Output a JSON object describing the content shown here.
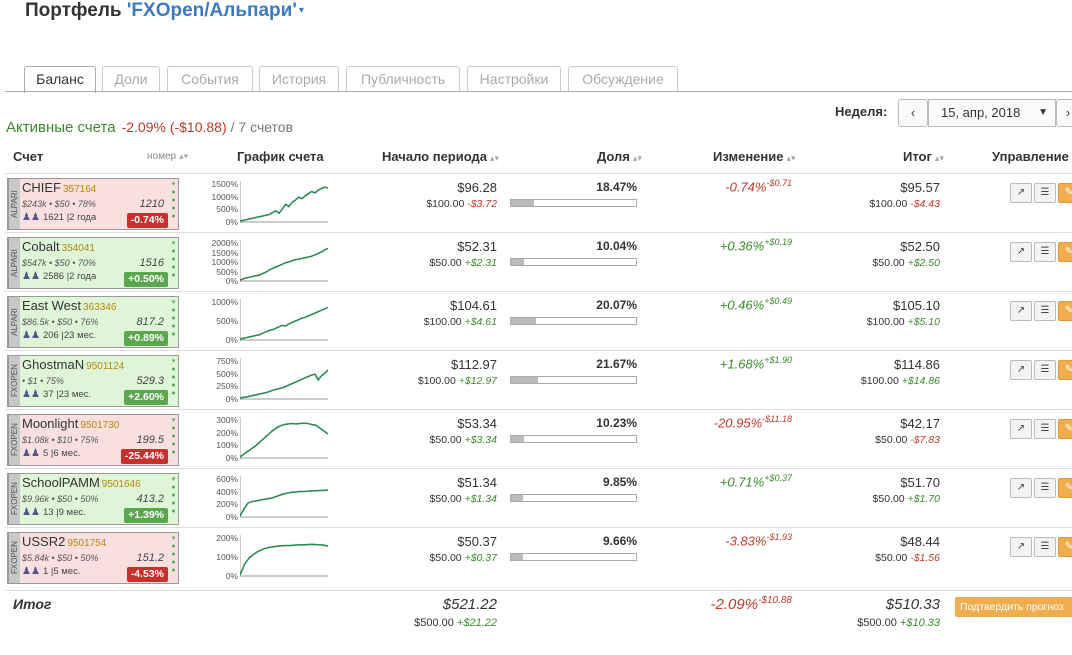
{
  "header": {
    "prefix": "Портфель ",
    "name": "'FXOpen/Альпари'",
    "caret": "▾"
  },
  "tabs": [
    "Баланс",
    "Доли",
    "События",
    "История",
    "Публичность",
    "Настройки",
    "Обсуждение"
  ],
  "week": {
    "label": "Неделя:",
    "value": "15, апр, 2018",
    "prev": "‹",
    "next": "›"
  },
  "active": {
    "title": "Активные счета",
    "change": "-2.09% (-$10.88)",
    "count": "/ 7 счетов"
  },
  "columns": {
    "account": "Счет",
    "number": "номер",
    "chart": "График счета",
    "start": "Начало периода",
    "share": "Доля",
    "change": "Изменение",
    "end": "Итог",
    "manage": "Управление"
  },
  "accounts": [
    {
      "name": "CHIEF",
      "number": "357164",
      "broker": "ALPARI",
      "card_color": "pink",
      "meta": "$243k • $50 • 78%",
      "meta2": "1621 |2 года",
      "rating": "1210",
      "badge": "-0.74%",
      "badge_type": "neg",
      "y_ticks": [
        "1500%",
        "1000%",
        "500%",
        "0%"
      ],
      "start": "$96.28",
      "start_sub": "$100.00",
      "start_delta": "-$3.72",
      "start_delta_type": "neg",
      "share": "18.47%",
      "share_value": 18.47,
      "change": "-0.74%",
      "change_abs": "-$0.71",
      "change_type": "neg",
      "end": "$95.57",
      "end_sub": "$100.00",
      "end_delta": "-$4.43",
      "end_delta_type": "neg",
      "spark": [
        0,
        2,
        4,
        6,
        8,
        10,
        12,
        14,
        16,
        18,
        24,
        28,
        22,
        34,
        46,
        40,
        52,
        58,
        66,
        62,
        70,
        76,
        82,
        78,
        86,
        90,
        94,
        92
      ]
    },
    {
      "name": "Cobalt",
      "number": "354041",
      "broker": "ALPARI",
      "card_color": "green",
      "meta": "$547k • $50 • 70%",
      "meta2": "2586 |2 года",
      "rating": "1516",
      "badge": "+0.50%",
      "badge_type": "pos",
      "y_ticks": [
        "2000%",
        "1500%",
        "1000%",
        "500%",
        "0%"
      ],
      "start": "$52.31",
      "start_sub": "$50.00",
      "start_delta": "+$2.31",
      "start_delta_type": "pos",
      "share": "10.04%",
      "share_value": 10.04,
      "change": "+0.36%",
      "change_abs": "+$0.19",
      "change_type": "pos",
      "end": "$52.50",
      "end_sub": "$50.00",
      "end_delta": "+$2.50",
      "end_delta_type": "pos",
      "spark": [
        0,
        3,
        6,
        8,
        10,
        12,
        14,
        18,
        22,
        28,
        32,
        36,
        40,
        44,
        48,
        50,
        54,
        56,
        58,
        60,
        62,
        64,
        66,
        70,
        74,
        78,
        84,
        88
      ]
    },
    {
      "name": "East West",
      "number": "363346",
      "broker": "ALPARI",
      "card_color": "green",
      "meta": "$86.5k • $50 • 76%",
      "meta2": "206 |23 мес.",
      "rating": "817.2",
      "badge": "+0.89%",
      "badge_type": "pos",
      "y_ticks": [
        "1000%",
        "500%",
        "0%"
      ],
      "start": "$104.61",
      "start_sub": "$100.00",
      "start_delta": "+$4.61",
      "start_delta_type": "pos",
      "share": "20.07%",
      "share_value": 20.07,
      "change": "+0.46%",
      "change_abs": "+$0.49",
      "change_type": "pos",
      "end": "$105.10",
      "end_sub": "$100.00",
      "end_delta": "+$5.10",
      "end_delta_type": "pos",
      "spark": [
        0,
        2,
        4,
        6,
        8,
        10,
        12,
        16,
        20,
        24,
        26,
        30,
        34,
        38,
        36,
        42,
        46,
        50,
        54,
        58,
        60,
        64,
        68,
        72,
        76,
        80,
        84,
        88
      ]
    },
    {
      "name": "GhostmaN",
      "number": "9501124",
      "broker": "FXOPEN",
      "card_color": "green",
      "meta": "• $1 • 75%",
      "meta2": "37 |23 мес.",
      "rating": "529.3",
      "badge": "+2.60%",
      "badge_type": "pos",
      "y_ticks": [
        "750%",
        "500%",
        "250%",
        "0%"
      ],
      "start": "$112.97",
      "start_sub": "$100.00",
      "start_delta": "+$12.97",
      "start_delta_type": "pos",
      "share": "21.67%",
      "share_value": 21.67,
      "change": "+1.68%",
      "change_abs": "+$1.90",
      "change_type": "pos",
      "end": "$114.86",
      "end_sub": "$100.00",
      "end_delta": "+$14.86",
      "end_delta_type": "pos",
      "spark": [
        0,
        2,
        3,
        5,
        7,
        9,
        11,
        13,
        15,
        18,
        21,
        24,
        26,
        28,
        32,
        36,
        40,
        44,
        48,
        52,
        56,
        60,
        64,
        66,
        50,
        62,
        68,
        78
      ]
    },
    {
      "name": "Moonlight",
      "number": "9501730",
      "broker": "FXOPEN",
      "card_color": "pink",
      "meta": "$1.08k • $10 • 75%",
      "meta2": "5 |6 мес.",
      "rating": "199.5",
      "badge": "-25.44%",
      "badge_type": "neg",
      "y_ticks": [
        "300%",
        "200%",
        "100%",
        "0%"
      ],
      "start": "$53.34",
      "start_sub": "$50.00",
      "start_delta": "+$3.34",
      "start_delta_type": "pos",
      "share": "10.23%",
      "share_value": 10.23,
      "change": "-20.95%",
      "change_abs": "-$11.18",
      "change_type": "neg",
      "end": "$42.17",
      "end_sub": "$50.00",
      "end_delta": "-$7.83",
      "end_delta_type": "neg",
      "spark": [
        0,
        8,
        16,
        24,
        32,
        42,
        52,
        62,
        72,
        80,
        86,
        90,
        92,
        93,
        92,
        93,
        94,
        93,
        90,
        88,
        80,
        72,
        64
      ]
    },
    {
      "name": "SchoolPAMM",
      "number": "9501646",
      "broker": "FXOPEN",
      "card_color": "green",
      "meta": "$9.96k • $50 • 50%",
      "meta2": "13 |9 мес.",
      "rating": "413.2",
      "badge": "+1.39%",
      "badge_type": "pos",
      "y_ticks": [
        "600%",
        "400%",
        "200%",
        "0%"
      ],
      "start": "$51.34",
      "start_sub": "$50.00",
      "start_delta": "+$1.34",
      "start_delta_type": "pos",
      "share": "9.85%",
      "share_value": 9.85,
      "change": "+0.71%",
      "change_abs": "+$0.37",
      "change_type": "pos",
      "end": "$51.70",
      "end_sub": "$50.00",
      "end_delta": "+$1.70",
      "end_delta_type": "pos",
      "spark": [
        0,
        20,
        36,
        40,
        42,
        44,
        46,
        48,
        50,
        54,
        58,
        62,
        64,
        66,
        67,
        68,
        68,
        69,
        70,
        70,
        71,
        71,
        72
      ]
    },
    {
      "name": "USSR2",
      "number": "9501754",
      "broker": "FXOPEN",
      "card_color": "pink",
      "meta": "$5.84k • $50 • 50%",
      "meta2": "1 |5 мес.",
      "rating": "151.2",
      "badge": "-4.53%",
      "badge_type": "neg",
      "y_ticks": [
        "200%",
        "100%",
        "0%"
      ],
      "start": "$50.37",
      "start_sub": "$50.00",
      "start_delta": "+$0.37",
      "start_delta_type": "pos",
      "share": "9.66%",
      "share_value": 9.66,
      "change": "-3.83%",
      "change_abs": "-$1.93",
      "change_type": "neg",
      "end": "$48.44",
      "end_sub": "$50.00",
      "end_delta": "-$1.56",
      "end_delta_type": "neg",
      "spark": [
        0,
        30,
        48,
        58,
        66,
        72,
        76,
        78,
        80,
        81,
        82,
        82,
        83,
        84,
        84,
        85,
        85,
        84,
        83,
        80
      ]
    }
  ],
  "total": {
    "label": "Итог",
    "start": "$521.22",
    "start_sub": "$500.00",
    "start_delta": "+$21.22",
    "change": "-2.09%",
    "change_abs": "-$10.88",
    "end": "$510.33",
    "end_sub": "$500.00",
    "end_delta": "+$10.33",
    "confirm": "Подтвердить прогноз"
  },
  "colors": {
    "positive": "#3a8a2c",
    "negative": "#c0392b",
    "line": "#2e8b57",
    "accent": "#3a7bbf"
  },
  "icons": {
    "chart": "chart-icon",
    "list": "list-icon",
    "edit": "pencil-icon"
  }
}
